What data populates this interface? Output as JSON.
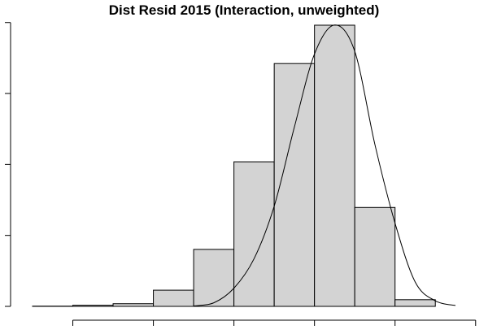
{
  "chart_data": {
    "type": "bar",
    "title": "Dist Resid 2015 (Interaction, unweighted)",
    "xlabel": "",
    "ylabel": "",
    "bins": [
      {
        "start": 0.0,
        "end": 1.0,
        "height": 0.1
      },
      {
        "start": 1.0,
        "end": 2.0,
        "height": 0.5
      },
      {
        "start": 2.0,
        "end": 3.0,
        "height": 1.2
      },
      {
        "start": 3.0,
        "end": 4.0,
        "height": 7.3
      },
      {
        "start": 4.0,
        "end": 5.0,
        "height": 25.7
      },
      {
        "start": 5.0,
        "end": 6.0,
        "height": 65.2
      },
      {
        "start": 6.0,
        "end": 7.0,
        "height": 109.5
      },
      {
        "start": 7.0,
        "end": 8.0,
        "height": 126.8
      },
      {
        "start": 8.0,
        "end": 9.0,
        "height": 44.6
      },
      {
        "start": 9.0,
        "end": 10.0,
        "height": 3.0
      }
    ],
    "density_curve": {
      "x": [
        4.0,
        4.5,
        5.0,
        5.5,
        6.0,
        6.5,
        7.0,
        7.5,
        8.0,
        8.5,
        9.0,
        9.5,
        10.0,
        10.5
      ],
      "y": [
        0.2,
        1.6,
        8.2,
        21.5,
        45.2,
        80.8,
        113.8,
        126.9,
        115.0,
        73.0,
        37.5,
        11.0,
        2.5,
        0.4
      ]
    },
    "xlim": [
      0,
      10.5
    ],
    "ylim": [
      0,
      126.8
    ],
    "x_ticks": [
      1,
      3,
      5,
      7,
      9,
      11
    ],
    "y_ticks": [
      0,
      32,
      64,
      96,
      128
    ],
    "tick_labels_shown": false,
    "grid": false
  }
}
